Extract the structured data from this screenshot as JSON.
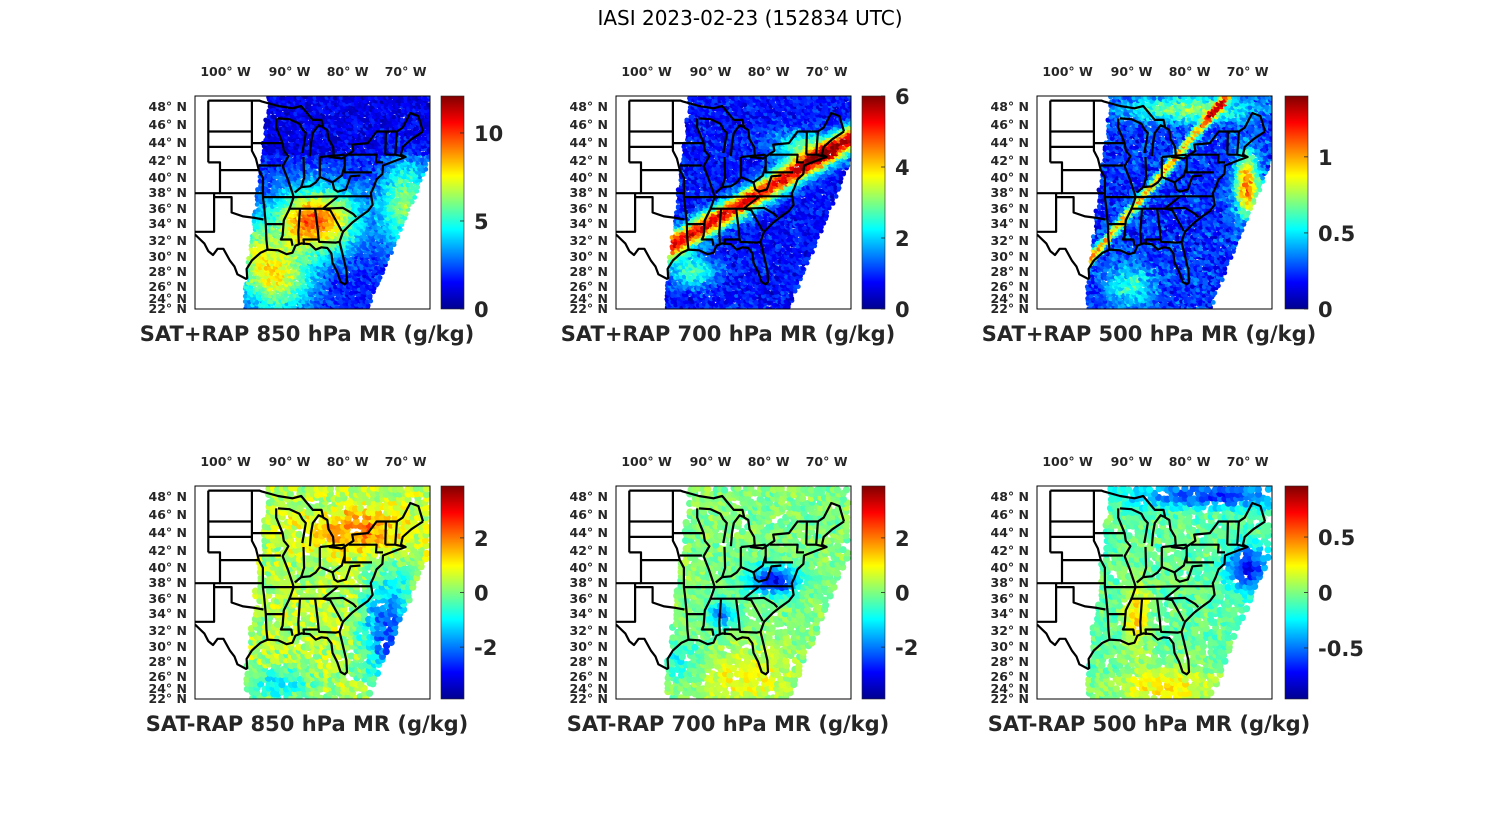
{
  "figure": {
    "title": "IASI 2023-02-23 (152834 UTC)"
  },
  "chart_data": [
    {
      "type": "heatmap",
      "subtype": "map-scatter",
      "title": "SAT+RAP 850 hPa MR (g/kg)",
      "lon_ticks": [
        "100° W",
        "90° W",
        "80° W",
        "70° W"
      ],
      "lat_ticks": [
        "48° N",
        "46° N",
        "44° N",
        "42° N",
        "40° N",
        "38° N",
        "36° N",
        "34° N",
        "32° N",
        "30° N",
        "28° N",
        "26° N",
        "24° N",
        "22° N"
      ],
      "colorbar": {
        "colormap": "jet",
        "range": [
          0,
          12.1
        ],
        "ticks": [
          0,
          5,
          10
        ],
        "tick_labels": [
          "0",
          "5",
          "10"
        ]
      },
      "field_pattern": "moist-southeast",
      "description": "Mostly low values (0-4) over north and central US; high values (8-11) over the southeast (AL, GA, TN, Carolinas) and a moist band over the Gulf of Mexico"
    },
    {
      "type": "heatmap",
      "subtype": "map-scatter",
      "title": "SAT+RAP 700 hPa MR (g/kg)",
      "lon_ticks": [
        "100° W",
        "90° W",
        "80° W",
        "70° W"
      ],
      "lat_ticks": [
        "48° N",
        "46° N",
        "44° N",
        "42° N",
        "40° N",
        "38° N",
        "36° N",
        "34° N",
        "32° N",
        "30° N",
        "28° N",
        "26° N",
        "24° N",
        "22° N"
      ],
      "colorbar": {
        "colormap": "jet",
        "range": [
          0,
          6
        ],
        "ticks": [
          0,
          2,
          4,
          6
        ],
        "tick_labels": [
          "0",
          "2",
          "4",
          "6"
        ]
      },
      "field_pattern": "moist-band",
      "description": "Low values (0-1.5) over most of the domain; a narrow band of high values (4-6) from Texas coast through TN/KY to Virginia and off the Mid-Atlantic coast"
    },
    {
      "type": "heatmap",
      "subtype": "map-scatter",
      "title": "SAT+RAP 500 hPa MR (g/kg)",
      "lon_ticks": [
        "100° W",
        "90° W",
        "80° W",
        "70° W"
      ],
      "lat_ticks": [
        "48° N",
        "46° N",
        "44° N",
        "42° N",
        "40° N",
        "38° N",
        "36° N",
        "34° N",
        "32° N",
        "30° N",
        "28° N",
        "26° N",
        "24° N",
        "22° N"
      ],
      "colorbar": {
        "colormap": "jet",
        "range": [
          0,
          1.4
        ],
        "ticks": [
          0,
          0.5,
          1
        ],
        "tick_labels": [
          "0",
          "0.5",
          "1"
        ]
      },
      "field_pattern": "thin-band",
      "description": "Mostly 0-0.4 over land; higher values (0.6-1.3) along a thin line from Texas coast to Ohio valley, off the Mid-Atlantic coast and over the northern edge"
    },
    {
      "type": "heatmap",
      "subtype": "map-scatter",
      "title": "SAT-RAP 850 hPa MR (g/kg)",
      "lon_ticks": [
        "100° W",
        "90° W",
        "80° W",
        "70° W"
      ],
      "lat_ticks": [
        "48° N",
        "46° N",
        "44° N",
        "42° N",
        "40° N",
        "38° N",
        "36° N",
        "34° N",
        "32° N",
        "30° N",
        "28° N",
        "26° N",
        "24° N",
        "22° N"
      ],
      "colorbar": {
        "colormap": "jet",
        "range": [
          -3.9,
          3.9
        ],
        "ticks": [
          -2,
          0,
          2
        ],
        "tick_labels": [
          "-2",
          "0",
          "2"
        ]
      },
      "field_pattern": "diff-850",
      "description": "Near-zero differences over most land; positive (1-2) over Great Lakes/New England; negative (-2 to -3) off the southeast Atlantic coast and scattered over Gulf"
    },
    {
      "type": "heatmap",
      "subtype": "map-scatter",
      "title": "SAT-RAP 700 hPa MR (g/kg)",
      "lon_ticks": [
        "100° W",
        "90° W",
        "80° W",
        "70° W"
      ],
      "lat_ticks": [
        "48° N",
        "46° N",
        "44° N",
        "42° N",
        "40° N",
        "38° N",
        "36° N",
        "34° N",
        "32° N",
        "30° N",
        "28° N",
        "26° N",
        "24° N",
        "22° N"
      ],
      "colorbar": {
        "colormap": "jet",
        "range": [
          -3.9,
          3.9
        ],
        "ticks": [
          -2,
          0,
          2
        ],
        "tick_labels": [
          "-2",
          "0",
          "2"
        ]
      },
      "field_pattern": "diff-700",
      "description": "Near-zero over most of the domain; negative (-2 to -3.5) over Virginia/Kentucky and Alabama; small positive spots; slightly positive over Gulf of Mexico"
    },
    {
      "type": "heatmap",
      "subtype": "map-scatter",
      "title": "SAT-RAP 500 hPa MR (g/kg)",
      "lon_ticks": [
        "100° W",
        "90° W",
        "80° W",
        "70° W"
      ],
      "lat_ticks": [
        "48° N",
        "46° N",
        "44° N",
        "42° N",
        "40° N",
        "38° N",
        "36° N",
        "34° N",
        "32° N",
        "30° N",
        "28° N",
        "26° N",
        "24° N",
        "22° N"
      ],
      "colorbar": {
        "colormap": "jet",
        "range": [
          -0.96,
          0.96
        ],
        "ticks": [
          -0.5,
          0,
          0.5
        ],
        "tick_labels": [
          "-0.5",
          "0",
          "0.5"
        ]
      },
      "field_pattern": "diff-500",
      "description": "Near-zero over most land; negative (-0.6 to -0.9) over northern edge and off Mid-Atlantic coast; positive (0.3-0.8) over southern Gulf and along the Mississippi valley"
    }
  ]
}
